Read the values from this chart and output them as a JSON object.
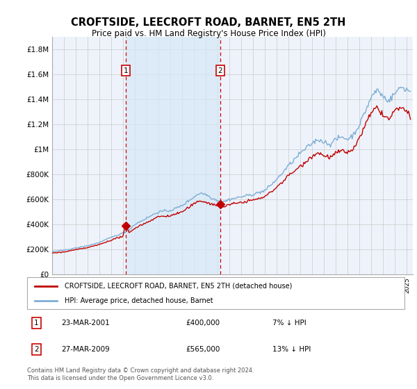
{
  "title": "CROFTSIDE, LEECROFT ROAD, BARNET, EN5 2TH",
  "subtitle": "Price paid vs. HM Land Registry's House Price Index (HPI)",
  "hpi_color": "#7eadd4",
  "hpi_fill_color": "#d6e8f7",
  "property_color": "#c00000",
  "vline_color": "#cc0000",
  "background_color": "#ffffff",
  "plot_bg_color": "#eef3fb",
  "grid_color": "#c8c8c8",
  "legend_label_property": "CROFTSIDE, LEECROFT ROAD, BARNET, EN5 2TH (detached house)",
  "legend_label_hpi": "HPI: Average price, detached house, Barnet",
  "sale1_x": 2001.22,
  "sale1_y": 400000,
  "sale1_label": "1",
  "sale1_date": "23-MAR-2001",
  "sale1_price": "£400,000",
  "sale1_hpi_text": "7% ↓ HPI",
  "sale2_x": 2009.22,
  "sale2_y": 565000,
  "sale2_label": "2",
  "sale2_date": "27-MAR-2009",
  "sale2_price": "£565,000",
  "sale2_hpi_text": "13% ↓ HPI",
  "ylim": [
    0,
    1900000
  ],
  "xlim": [
    1995.0,
    2025.5
  ],
  "yticks": [
    0,
    200000,
    400000,
    600000,
    800000,
    1000000,
    1200000,
    1400000,
    1600000,
    1800000
  ],
  "ytick_labels": [
    "£0",
    "£200K",
    "£400K",
    "£600K",
    "£800K",
    "£1M",
    "£1.2M",
    "£1.4M",
    "£1.6M",
    "£1.8M"
  ],
  "footer": "Contains HM Land Registry data © Crown copyright and database right 2024.\nThis data is licensed under the Open Government Licence v3.0."
}
